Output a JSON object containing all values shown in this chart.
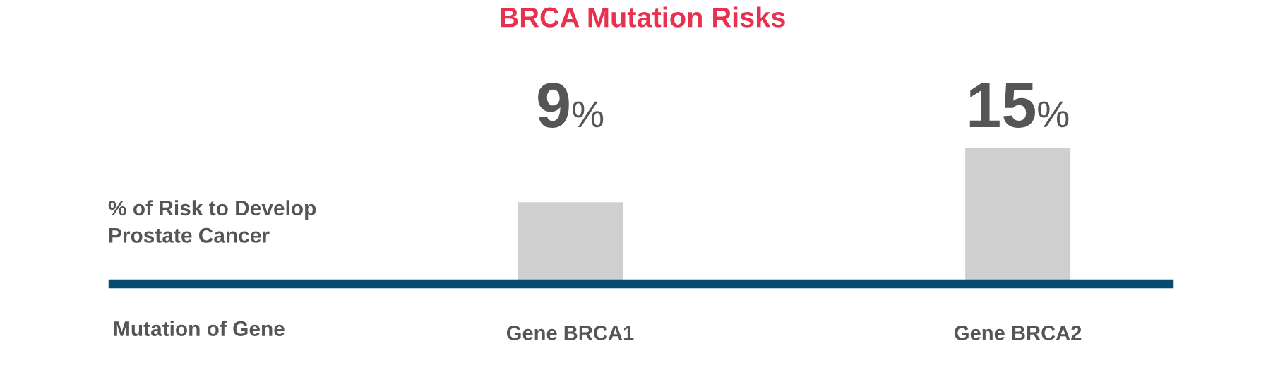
{
  "chart_data": {
    "type": "bar",
    "title": "BRCA Mutation Risks",
    "xlabel": "Mutation of Gene",
    "ylabel": "% of Risk to Develop\nProstate Cancer",
    "categories": [
      "Gene BRCA1",
      "Gene BRCA2"
    ],
    "values": [
      9,
      15
    ],
    "color": "#cfcfcf",
    "value_labels": [
      "9%",
      "15%"
    ],
    "tick_labels": "x"
  }
}
